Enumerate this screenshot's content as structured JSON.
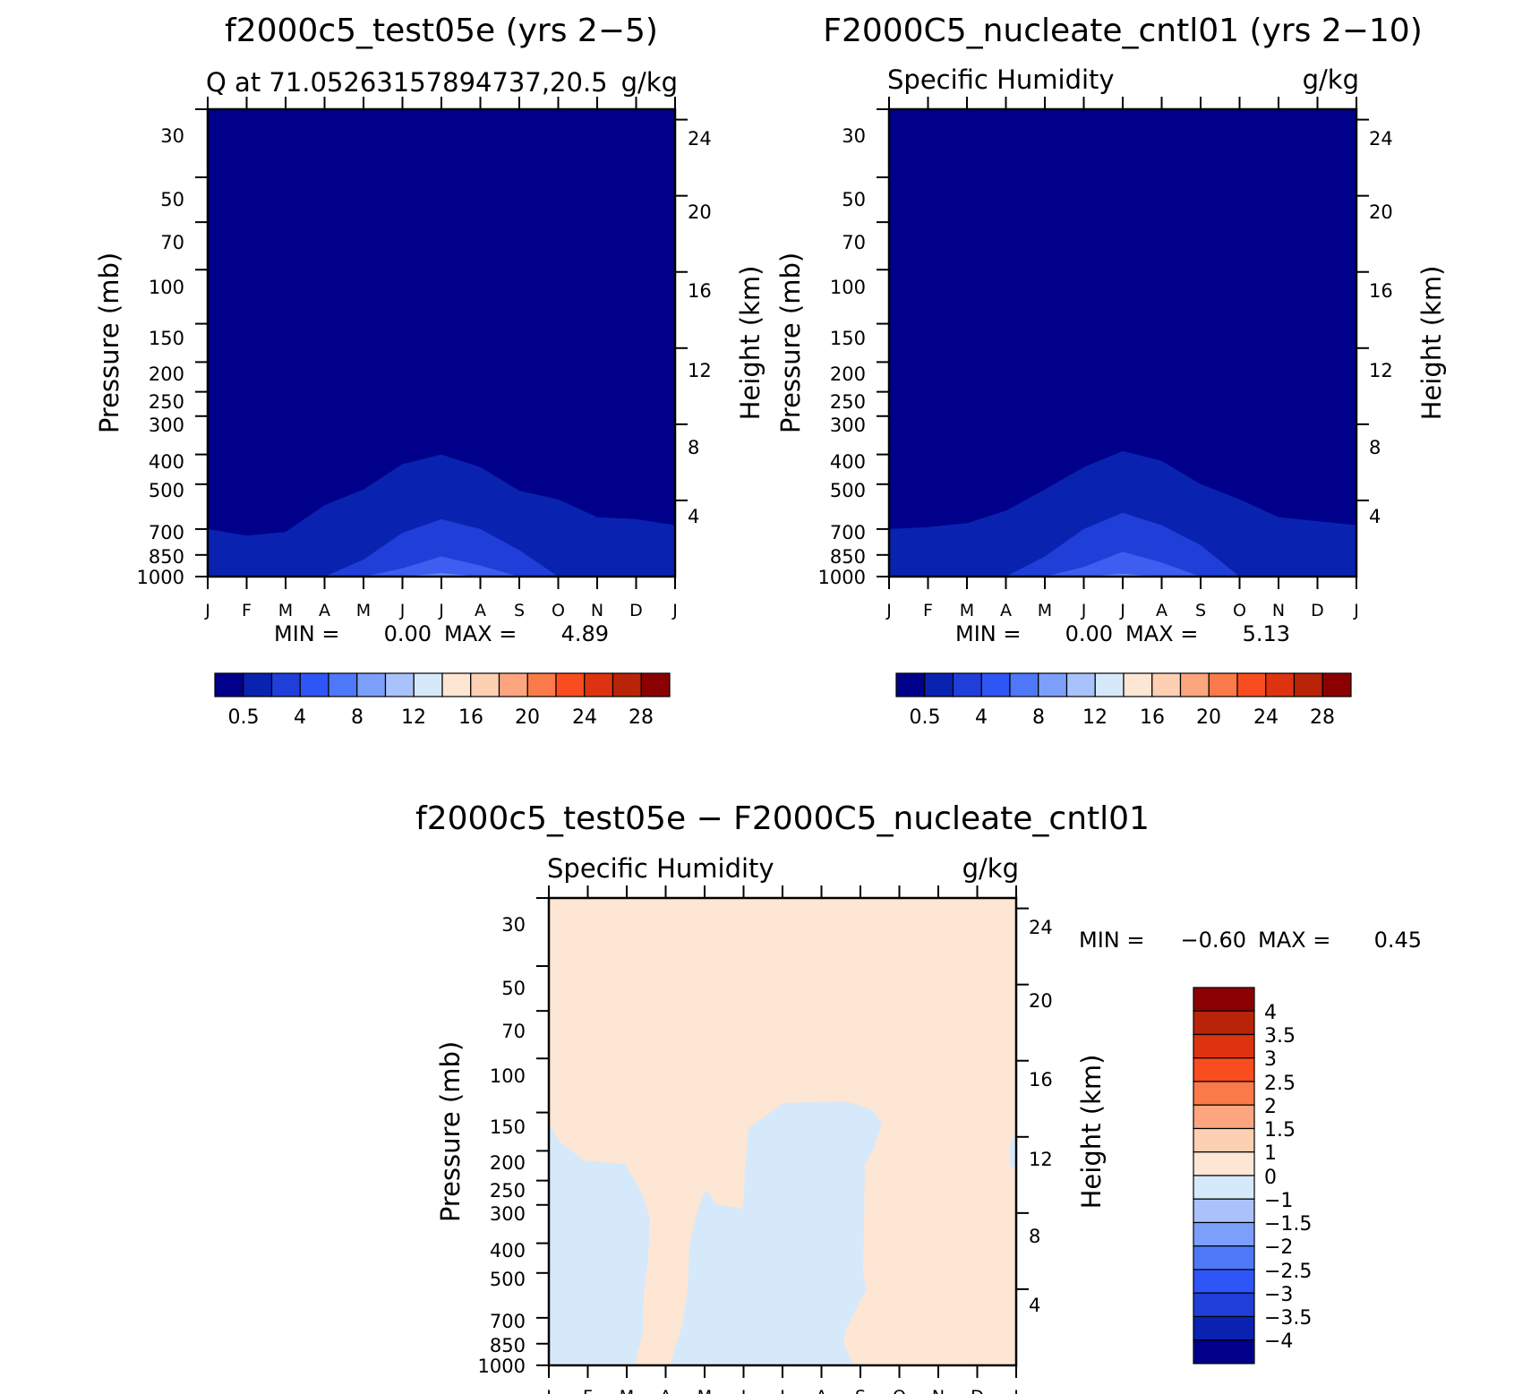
{
  "colors": {
    "axis": "#000000",
    "background_fill": "#00008b",
    "contour_dark": "#0a22b0",
    "contour_mid": "#1f3fd8",
    "contour_light": "#3d5ef0",
    "contour_lightest": "#6f8ff7",
    "diff_positive": "#fde6d3",
    "diff_negative": "#d6e9fb"
  },
  "chart_data": [
    {
      "id": "panel-1",
      "type": "contour",
      "title": "f2000c5_test05e (yrs 2−5)",
      "left_label": "Q at 71.05263157894737,20.5",
      "right_label": "g/kg",
      "ylabel": "Pressure (mb)",
      "y2label": "Height (km)",
      "months": [
        "J",
        "F",
        "M",
        "A",
        "M",
        "J",
        "J",
        "A",
        "S",
        "O",
        "N",
        "D",
        "J"
      ],
      "pressure_ticks": [
        "30",
        "50",
        "70",
        "100",
        "150",
        "200",
        "250",
        "300",
        "400",
        "500",
        "700",
        "850",
        "1000"
      ],
      "height_ticks": [
        "24",
        "20",
        "16",
        "12",
        "8",
        "4"
      ],
      "min_label": "MIN =",
      "min_value": "0.00",
      "max_label": "MAX =",
      "max_value": "4.89",
      "ylim": [
        1000,
        30
      ],
      "contour_tops_mb": {
        "c1": [
          700,
          735,
          715,
          585,
          520,
          430,
          400,
          440,
          525,
          560,
          640,
          650,
          680
        ],
        "c2": [
          1000,
          1000,
          1000,
          1000,
          880,
          720,
          650,
          700,
          820,
          1000,
          1000,
          1000,
          1000
        ],
        "c3": [
          1000,
          1000,
          1000,
          1000,
          1000,
          940,
          860,
          920,
          1000,
          1000,
          1000,
          1000,
          1000
        ],
        "c4": [
          1000,
          1000,
          1000,
          1000,
          1000,
          1000,
          975,
          1000,
          1000,
          1000,
          1000,
          1000,
          1000
        ]
      }
    },
    {
      "id": "panel-2",
      "type": "contour",
      "title": "F2000C5_nucleate_cntl01 (yrs 2−10)",
      "left_label": "Specific Humidity",
      "right_label": "g/kg",
      "ylabel": "Pressure (mb)",
      "y2label": "Height (km)",
      "months": [
        "J",
        "F",
        "M",
        "A",
        "M",
        "J",
        "J",
        "A",
        "S",
        "O",
        "N",
        "D",
        "J"
      ],
      "pressure_ticks": [
        "30",
        "50",
        "70",
        "100",
        "150",
        "200",
        "250",
        "300",
        "400",
        "500",
        "700",
        "850",
        "1000"
      ],
      "height_ticks": [
        "24",
        "20",
        "16",
        "12",
        "8",
        "4"
      ],
      "min_label": "MIN =",
      "min_value": "0.00",
      "max_label": "MAX =",
      "max_value": "5.13",
      "ylim": [
        1000,
        30
      ],
      "contour_tops_mb": {
        "c1": [
          700,
          690,
          670,
          610,
          520,
          440,
          390,
          420,
          500,
          560,
          640,
          660,
          680
        ],
        "c2": [
          1000,
          1000,
          1000,
          1000,
          860,
          700,
          620,
          680,
          790,
          1000,
          1000,
          1000,
          1000
        ],
        "c3": [
          1000,
          1000,
          1000,
          1000,
          1000,
          930,
          830,
          900,
          1000,
          1000,
          1000,
          1000,
          1000
        ],
        "c4": [
          1000,
          1000,
          1000,
          1000,
          1000,
          1000,
          980,
          1000,
          1000,
          1000,
          1000,
          1000,
          1000
        ]
      }
    },
    {
      "id": "panel-3",
      "type": "contour",
      "title": "f2000c5_test05e − F2000C5_nucleate_cntl01",
      "left_label": "Specific Humidity",
      "right_label": "g/kg",
      "ylabel": "Pressure (mb)",
      "y2label": "Height (km)",
      "months": [
        "J",
        "F",
        "M",
        "A",
        "M",
        "J",
        "J",
        "A",
        "S",
        "O",
        "N",
        "D",
        "J"
      ],
      "pressure_ticks": [
        "30",
        "50",
        "70",
        "100",
        "150",
        "200",
        "250",
        "300",
        "400",
        "500",
        "700",
        "850",
        "1000"
      ],
      "height_ticks": [
        "24",
        "20",
        "16",
        "12",
        "8",
        "4"
      ],
      "min_label": "MIN =",
      "min_value": "−0.60",
      "max_label": "MAX =",
      "max_value": "0.45",
      "ylim": [
        1000,
        30
      ],
      "negative_regions": [
        "Jan–Mar lower column below ~150 mb",
        "May–Sep lower column below ~120 mb"
      ]
    }
  ],
  "colorbars": [
    {
      "id": "colorbar-1",
      "orientation": "horizontal",
      "colors": [
        "#00008b",
        "#0a22b0",
        "#1f3fd8",
        "#2e55f5",
        "#4f78f8",
        "#7b9ffa",
        "#a9c2fb",
        "#d6e9fb",
        "#fde6d3",
        "#fdcfb3",
        "#fca57e",
        "#fb7a4a",
        "#f94d20",
        "#de3310",
        "#b82408",
        "#8b0000"
      ],
      "labels": [
        "0.5",
        "4",
        "8",
        "12",
        "16",
        "20",
        "24",
        "28"
      ]
    },
    {
      "id": "colorbar-2",
      "orientation": "horizontal",
      "colors": [
        "#00008b",
        "#0a22b0",
        "#1f3fd8",
        "#2e55f5",
        "#4f78f8",
        "#7b9ffa",
        "#a9c2fb",
        "#d6e9fb",
        "#fde6d3",
        "#fdcfb3",
        "#fca57e",
        "#fb7a4a",
        "#f94d20",
        "#de3310",
        "#b82408",
        "#8b0000"
      ],
      "labels": [
        "0.5",
        "4",
        "8",
        "12",
        "16",
        "20",
        "24",
        "28"
      ]
    },
    {
      "id": "colorbar-3",
      "orientation": "vertical",
      "colors": [
        "#8b0000",
        "#b82408",
        "#de3310",
        "#f94d20",
        "#fb7a4a",
        "#fca57e",
        "#fdcfb3",
        "#fde6d3",
        "#d6e9fb",
        "#a9c2fb",
        "#7b9ffa",
        "#4f78f8",
        "#2e55f5",
        "#1f3fd8",
        "#0a22b0",
        "#00008b"
      ],
      "labels": [
        "4",
        "3.5",
        "3",
        "2.5",
        "2",
        "1.5",
        "1",
        "0",
        "−1",
        "−1.5",
        "−2",
        "−2.5",
        "−3",
        "−3.5",
        "−4"
      ]
    }
  ]
}
